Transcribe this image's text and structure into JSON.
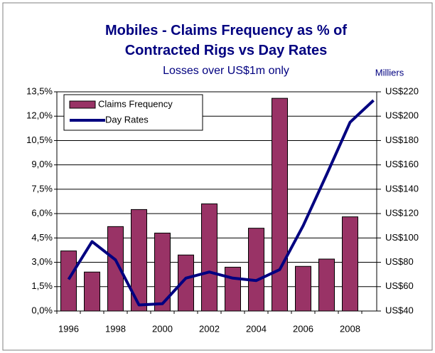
{
  "chart_data": {
    "type": "bar",
    "title": "Mobiles - Claims Frequency as % of Contracted Rigs vs Day Rates",
    "subtitle": "Losses over US$1m only",
    "y2_unit_label": "Milliers",
    "categories": [
      "1996",
      null,
      "1998",
      null,
      "2000",
      null,
      "2002",
      null,
      "2004",
      null,
      "2006",
      null,
      "2008",
      null
    ],
    "series": [
      {
        "name": "Claims Frequency",
        "type": "bar",
        "color": "#993366",
        "values": [
          3.7,
          2.4,
          5.2,
          6.25,
          4.8,
          3.45,
          6.6,
          2.7,
          5.1,
          13.1,
          2.75,
          3.2,
          5.8,
          null
        ]
      },
      {
        "name": "Day Rates",
        "type": "line",
        "axis": "y2",
        "color": "#000080",
        "values": [
          66,
          97,
          82,
          45,
          46,
          67,
          72,
          67,
          65,
          74,
          110,
          152,
          195,
          213
        ]
      }
    ],
    "ylim": [
      0,
      13.5
    ],
    "yticks": [
      {
        "value": 0,
        "label": "0,0%"
      },
      {
        "value": 1.5,
        "label": "1,5%"
      },
      {
        "value": 3,
        "label": "3,0%"
      },
      {
        "value": 4.5,
        "label": "4,5%"
      },
      {
        "value": 6,
        "label": "6,0%"
      },
      {
        "value": 7.5,
        "label": "7,5%"
      },
      {
        "value": 9,
        "label": "9,0%"
      },
      {
        "value": 10.5,
        "label": "10,5%"
      },
      {
        "value": 12,
        "label": "12,0%"
      },
      {
        "value": 13.5,
        "label": "13,5%"
      }
    ],
    "y2lim": [
      40,
      220
    ],
    "y2ticks": [
      {
        "value": 40,
        "label": "US$40"
      },
      {
        "value": 60,
        "label": "US$60"
      },
      {
        "value": 80,
        "label": "US$80"
      },
      {
        "value": 100,
        "label": "US$100"
      },
      {
        "value": 120,
        "label": "US$120"
      },
      {
        "value": 140,
        "label": "US$140"
      },
      {
        "value": 160,
        "label": "US$160"
      },
      {
        "value": 180,
        "label": "US$180"
      },
      {
        "value": 200,
        "label": "US$200"
      },
      {
        "value": 220,
        "label": "US$220"
      }
    ],
    "grid": true
  }
}
